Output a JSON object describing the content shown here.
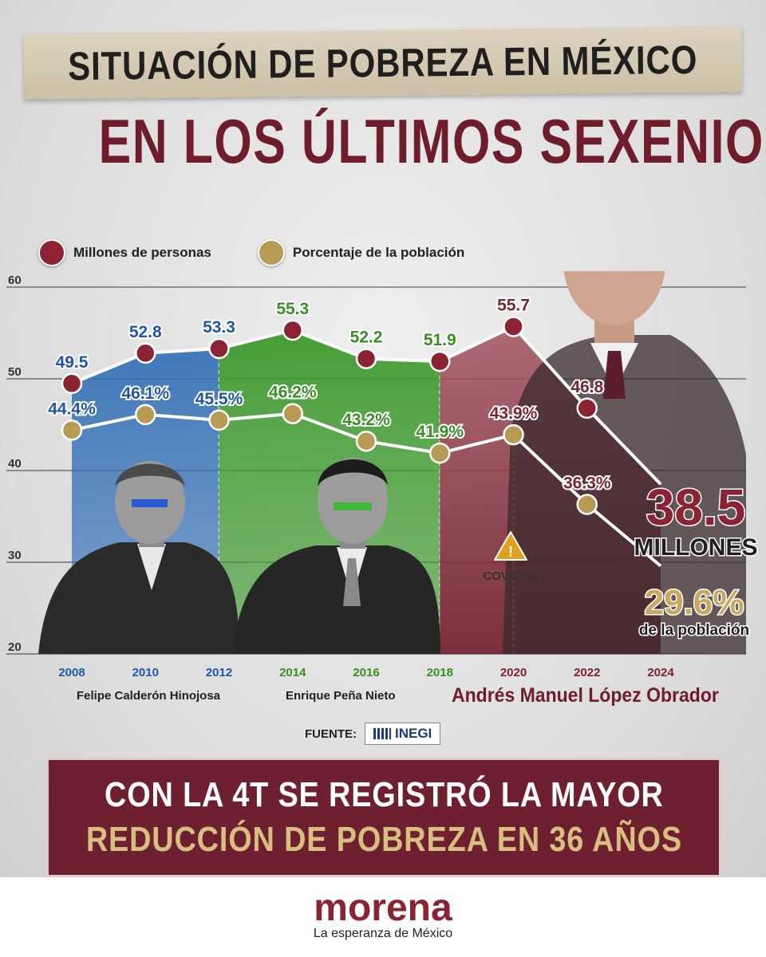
{
  "header": {
    "title": "SITUACIÓN DE POBREZA EN MÉXICO",
    "subtitle": "EN LOS ÚLTIMOS SEXENIOS"
  },
  "legend": {
    "millions_label": "Millones de personas",
    "percent_label": "Porcentaje de la población",
    "millions_color": "#8b2332",
    "percent_color": "#b79b55"
  },
  "chart_data": {
    "type": "line",
    "x": [
      "2008",
      "2010",
      "2012",
      "2014",
      "2016",
      "2018",
      "2020",
      "2022",
      "2024"
    ],
    "ylim": [
      20,
      60
    ],
    "yticks": [
      "20",
      "30",
      "40",
      "50",
      "60"
    ],
    "series": [
      {
        "name": "Millones de personas",
        "values": [
          49.5,
          52.8,
          53.3,
          55.3,
          52.2,
          51.9,
          55.7,
          46.8,
          38.5
        ],
        "labels": [
          "49.5",
          "52.8",
          "53.3",
          "55.3",
          "52.2",
          "51.9",
          "55.7",
          "46.8",
          ""
        ]
      },
      {
        "name": "Porcentaje de la población",
        "values": [
          44.4,
          46.1,
          45.5,
          46.2,
          43.2,
          41.9,
          43.9,
          36.3,
          29.6
        ],
        "labels": [
          "44.4%",
          "46.1%",
          "45.5%",
          "46.2%",
          "43.2%",
          "41.9%",
          "43.9%",
          "36.3%",
          ""
        ]
      }
    ],
    "periods": [
      {
        "name": "Felipe Calderón Hinojosa",
        "from": "2008",
        "to": "2012",
        "color": "#2f6db5"
      },
      {
        "name": "Enrique Peña Nieto",
        "from": "2012",
        "to": "2018",
        "color": "#3e9a2e"
      },
      {
        "name": "Andrés Manuel López Obrador",
        "from": "2018",
        "to": "2024",
        "color": "#7a2432"
      }
    ],
    "year_colors": [
      "#1f57a8",
      "#1f57a8",
      "#1f57a8",
      "#3a8f23",
      "#3a8f23",
      "#3a8f23",
      "#7a2432",
      "#7a2432",
      "#7a2432"
    ],
    "annotation": {
      "label": "COVID-19",
      "x": "2020"
    },
    "callout_millions": {
      "value": "38.5",
      "unit": "MILLONES"
    },
    "callout_percent": {
      "value": "29.6%",
      "unit": "de la población"
    }
  },
  "presidents": {
    "calderon": "Felipe Calderón Hinojosa",
    "pena": "Enrique Peña Nieto",
    "amlo": "Andrés Manuel López Obrador"
  },
  "source": {
    "label": "FUENTE:",
    "org": "INEGI"
  },
  "banner": {
    "line1": "CON LA 4T SE REGISTRÓ LA MAYOR",
    "line2": "REDUCCIÓN DE POBREZA EN 36 AÑOS"
  },
  "footer": {
    "logo": "morena",
    "tagline": "La esperanza de México"
  }
}
